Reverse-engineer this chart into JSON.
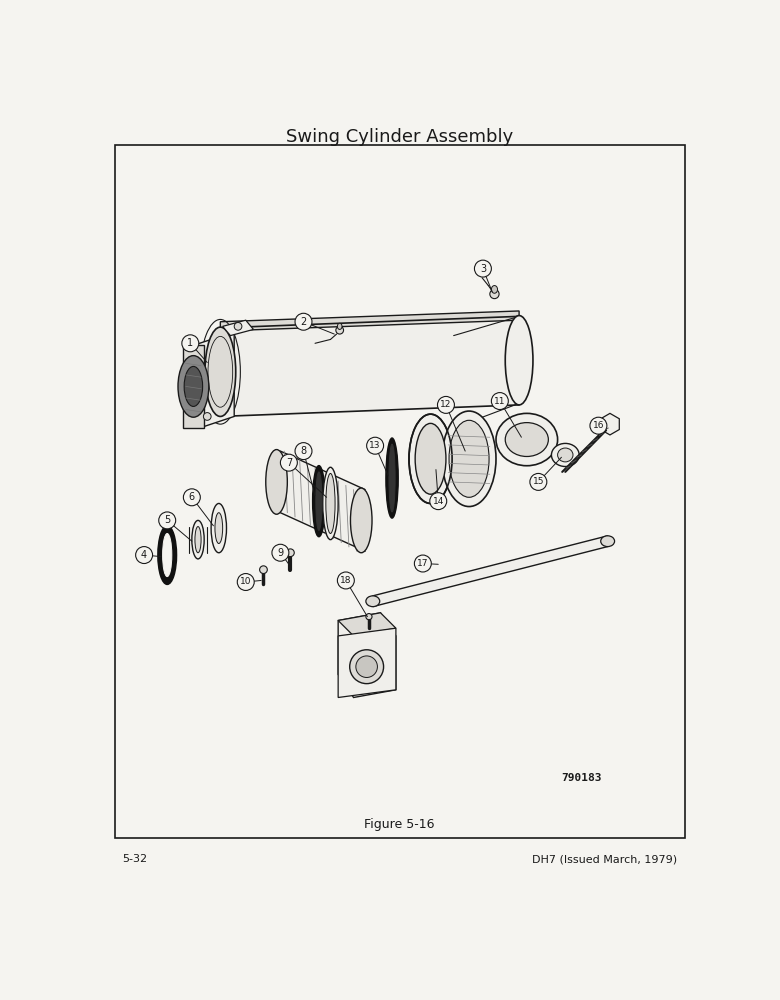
{
  "title": "Swing Cylinder Assembly",
  "figure_label": "Figure 5-16",
  "page_left": "5-32",
  "page_right": "DH7 (Issued March, 1979)",
  "part_number": "790183",
  "bg_color": "#f5f4f0",
  "border_color": "#1a1a1a",
  "line_color": "#1a1a1a",
  "fill_light": "#f0efeb",
  "fill_mid": "#dddbd6",
  "fill_dark": "#c8c6c1",
  "fill_black": "#1a1a1a"
}
